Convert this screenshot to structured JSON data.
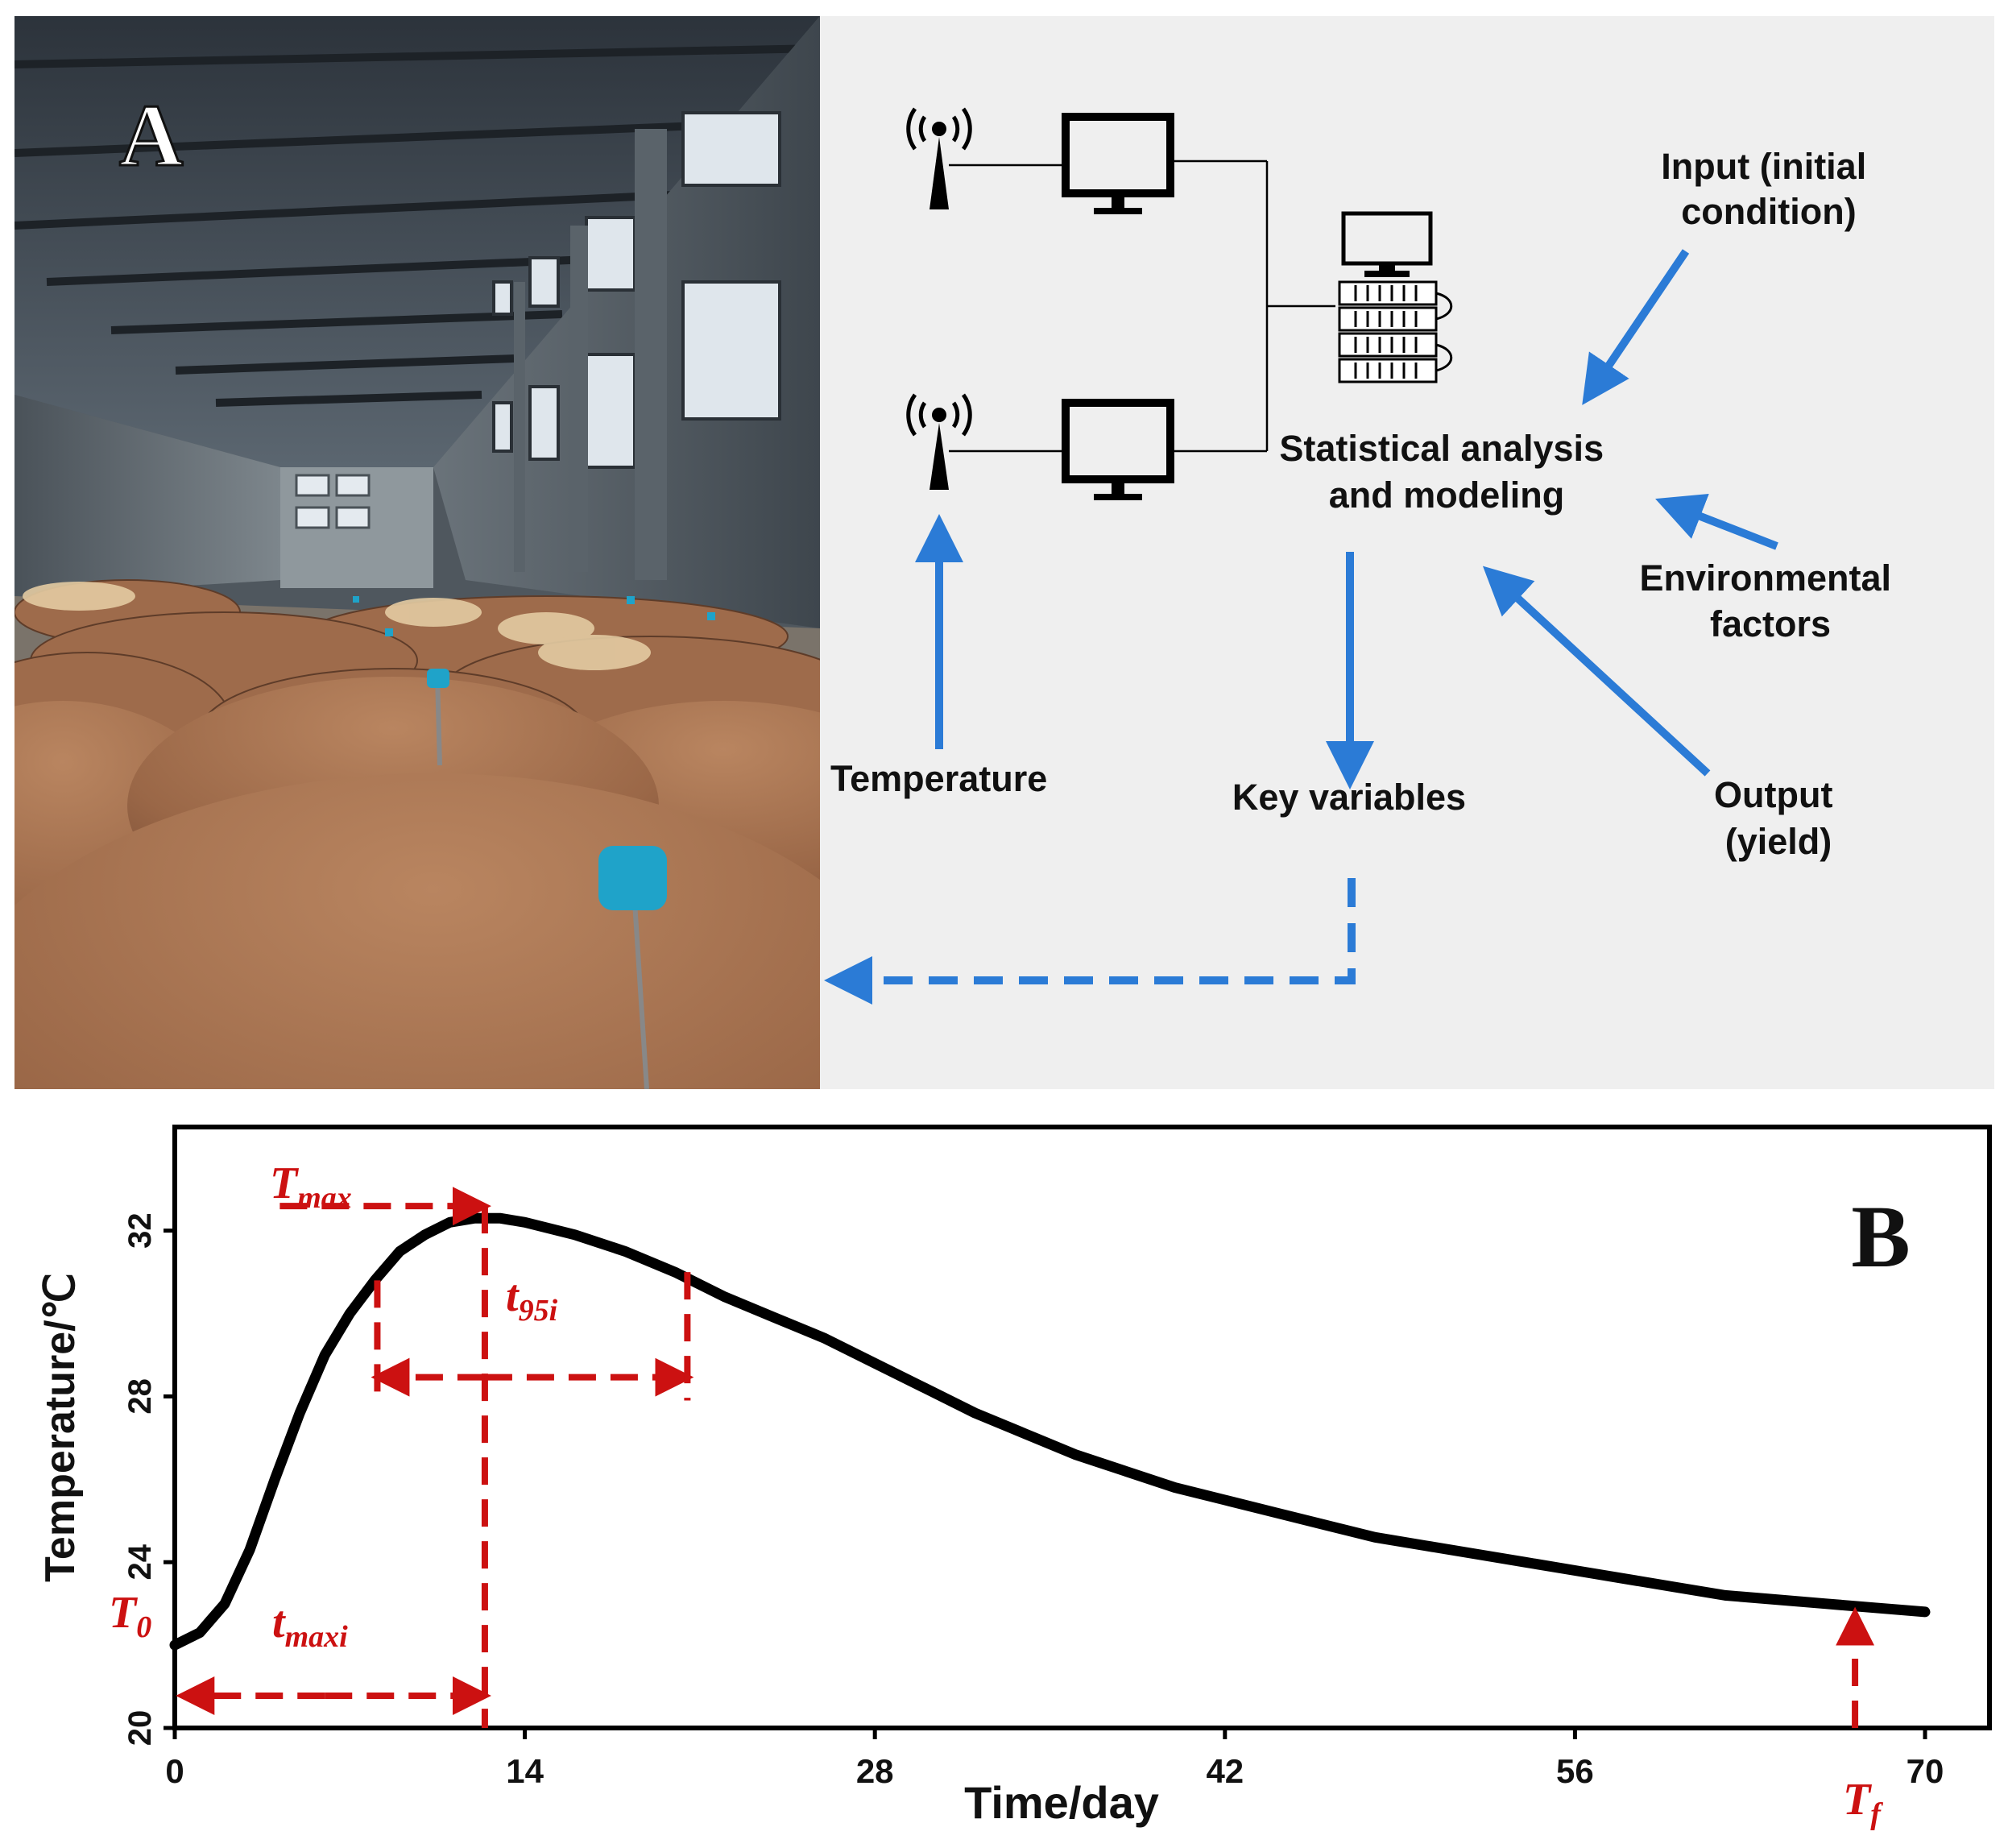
{
  "panel_a": {
    "label": "A",
    "diagram": {
      "input_label": [
        "Input (initial",
        "condition)"
      ],
      "environmental_label": [
        "Environmental",
        "factors"
      ],
      "output_label": [
        "Output",
        "(yield)"
      ],
      "analysis_label": [
        "Statistical analysis",
        "and modeling"
      ],
      "temperature_label": "Temperature",
      "key_variables_label": "Key variables",
      "arrow_color": "#2b7bd6",
      "icons": [
        "antenna-icon",
        "monitor-icon",
        "server-icon"
      ]
    }
  },
  "panel_b": {
    "label": "B",
    "annotations": {
      "t_max": {
        "base": "T",
        "sub": "max"
      },
      "t_95i": {
        "base": "t",
        "sub": "95i"
      },
      "t_0": {
        "base": "T",
        "sub": "0"
      },
      "t_maxi": {
        "base": "t",
        "sub": "maxi"
      },
      "t_f": {
        "base": "T",
        "sub": "f"
      },
      "color": "#cc1111"
    }
  },
  "chart_data": {
    "type": "line",
    "title": "",
    "xlabel": "Time/day",
    "ylabel": "Temperature/℃",
    "xlim": [
      0,
      70
    ],
    "ylim": [
      20,
      34.5
    ],
    "xticks": [
      0,
      14,
      28,
      42,
      56,
      70
    ],
    "yticks": [
      20,
      24,
      28,
      32
    ],
    "grid": false,
    "series": [
      {
        "color": "#000000",
        "x": [
          0,
          1,
          2,
          3,
          4,
          5,
          6,
          7,
          8,
          9,
          10,
          11,
          12,
          13,
          14,
          16,
          18,
          20,
          22,
          24,
          26,
          28,
          30,
          32,
          34,
          36,
          38,
          40,
          42,
          44,
          46,
          48,
          50,
          52,
          54,
          56,
          58,
          60,
          62,
          64,
          66,
          68,
          70
        ],
        "y": [
          22.0,
          22.3,
          23.0,
          24.3,
          26.0,
          27.6,
          29.0,
          30.0,
          30.8,
          31.5,
          31.9,
          32.2,
          32.3,
          32.3,
          32.2,
          31.9,
          31.5,
          31.0,
          30.4,
          29.9,
          29.4,
          28.8,
          28.2,
          27.6,
          27.1,
          26.6,
          26.2,
          25.8,
          25.5,
          25.2,
          24.9,
          24.6,
          24.4,
          24.2,
          24.0,
          23.8,
          23.6,
          23.4,
          23.2,
          23.1,
          23.0,
          22.9,
          22.8
        ]
      }
    ],
    "markers": {
      "t_max_day": 12.4,
      "t_95i_start_day": 8.1,
      "t_95i_end_day": 20.5,
      "t_95i_temp": 30.6,
      "t_f_day": 67.2
    }
  }
}
